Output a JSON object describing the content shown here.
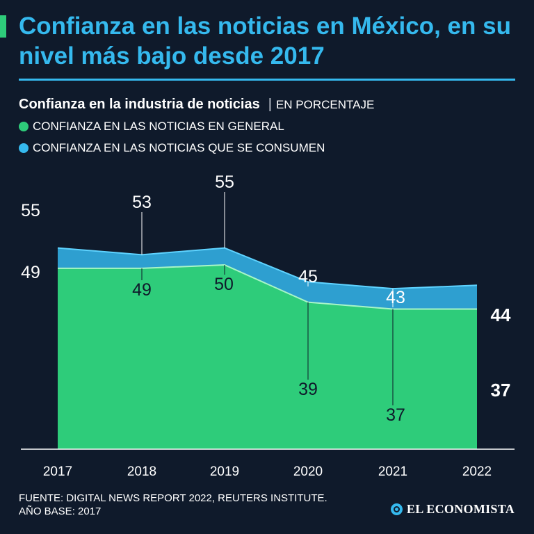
{
  "title": "Confianza en las noticias en México, en su nivel más bajo desde 2017",
  "subtitle": "Confianza en la industria de noticias",
  "unit": "EN PORCENTAJE",
  "colors": {
    "background": "#0f1a2b",
    "title": "#35b9ee",
    "green": "#2ecc7a",
    "blue": "#2e9fd0",
    "blue_line": "#5fd3ff"
  },
  "chart_data": {
    "type": "area",
    "x": [
      "2017",
      "2018",
      "2019",
      "2020",
      "2021",
      "2022"
    ],
    "ylim": [
      0,
      60
    ],
    "series": [
      {
        "name": "CONFIANZA EN LAS NOTICIAS EN GENERAL",
        "color": "#2ecc7a",
        "values": [
          49,
          49,
          50,
          39,
          37,
          37
        ]
      },
      {
        "name": "CONFIANZA EN LAS NOTICIAS QUE SE CONSUMEN",
        "color": "#2e9fd0",
        "values": [
          55,
          53,
          55,
          45,
          43,
          44
        ]
      }
    ]
  },
  "source_line1": "FUENTE: DIGITAL NEWS REPORT 2022, REUTERS INSTITUTE.",
  "source_line2": "AÑO BASE: 2017",
  "logo_text": "EL ECONOMISTA"
}
